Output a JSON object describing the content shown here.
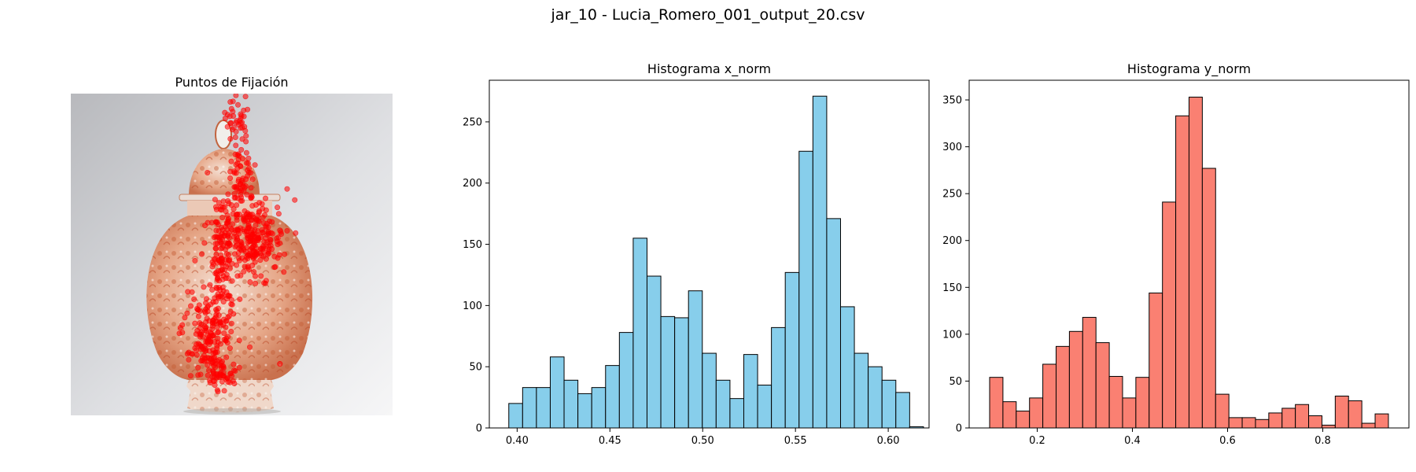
{
  "figure_title": "jar_10 - Lucia_Romero_001_output_20.csv",
  "chart_data": [
    {
      "type": "scatter",
      "title": "Puntos de Fijación",
      "background": "jar photograph",
      "point_color": "#ff0000",
      "axes": "off",
      "clusters": [
        {
          "x_center": 0.52,
          "y_center": 0.08,
          "x_spread": 0.02,
          "y_spread": 0.04,
          "count": 40
        },
        {
          "x_center": 0.53,
          "y_center": 0.25,
          "x_spread": 0.02,
          "y_spread": 0.05,
          "count": 60
        },
        {
          "x_center": 0.56,
          "y_center": 0.45,
          "x_spread": 0.05,
          "y_spread": 0.06,
          "count": 260
        },
        {
          "x_center": 0.47,
          "y_center": 0.5,
          "x_spread": 0.02,
          "y_spread": 0.1,
          "count": 120
        },
        {
          "x_center": 0.43,
          "y_center": 0.74,
          "x_spread": 0.04,
          "y_spread": 0.06,
          "count": 160
        },
        {
          "x_center": 0.46,
          "y_center": 0.87,
          "x_spread": 0.03,
          "y_spread": 0.03,
          "count": 60
        }
      ],
      "outliers": [
        {
          "x": 0.65,
          "y": 0.84
        }
      ]
    },
    {
      "type": "bar",
      "title": "Histograma x_norm",
      "color": "#87ceeb",
      "edgecolor": "#000000",
      "bin_start": 0.3955,
      "bin_width": 0.00745,
      "values": [
        20,
        33,
        33,
        58,
        39,
        28,
        33,
        51,
        78,
        155,
        124,
        91,
        90,
        112,
        61,
        39,
        24,
        60,
        35,
        82,
        127,
        226,
        271,
        171,
        99,
        61,
        50,
        39,
        29,
        1
      ],
      "xlim": [
        0.385,
        0.622
      ],
      "ylim": [
        0,
        284
      ],
      "xticks": [
        0.4,
        0.45,
        0.5,
        0.55,
        0.6
      ],
      "xtick_labels": [
        "0.40",
        "0.45",
        "0.50",
        "0.55",
        "0.60"
      ],
      "yticks": [
        0,
        50,
        100,
        150,
        200,
        250
      ],
      "ytick_labels": [
        "0",
        "50",
        "100",
        "150",
        "200",
        "250"
      ]
    },
    {
      "type": "bar",
      "title": "Histograma y_norm",
      "color": "#fa8072",
      "edgecolor": "#000000",
      "bin_start": 0.1,
      "bin_width": 0.02793,
      "values": [
        54,
        28,
        18,
        32,
        68,
        87,
        103,
        118,
        91,
        55,
        32,
        54,
        144,
        241,
        333,
        353,
        277,
        36,
        11,
        11,
        9,
        16,
        21,
        25,
        13,
        3,
        34,
        29,
        5,
        15
      ],
      "xlim": [
        0.057,
        0.981
      ],
      "ylim": [
        0,
        371
      ],
      "xticks": [
        0.2,
        0.4,
        0.6,
        0.8
      ],
      "xtick_labels": [
        "0.2",
        "0.4",
        "0.6",
        "0.8"
      ],
      "yticks": [
        0,
        50,
        100,
        150,
        200,
        250,
        300,
        350
      ],
      "ytick_labels": [
        "0",
        "50",
        "100",
        "150",
        "200",
        "250",
        "300",
        "350"
      ]
    }
  ]
}
